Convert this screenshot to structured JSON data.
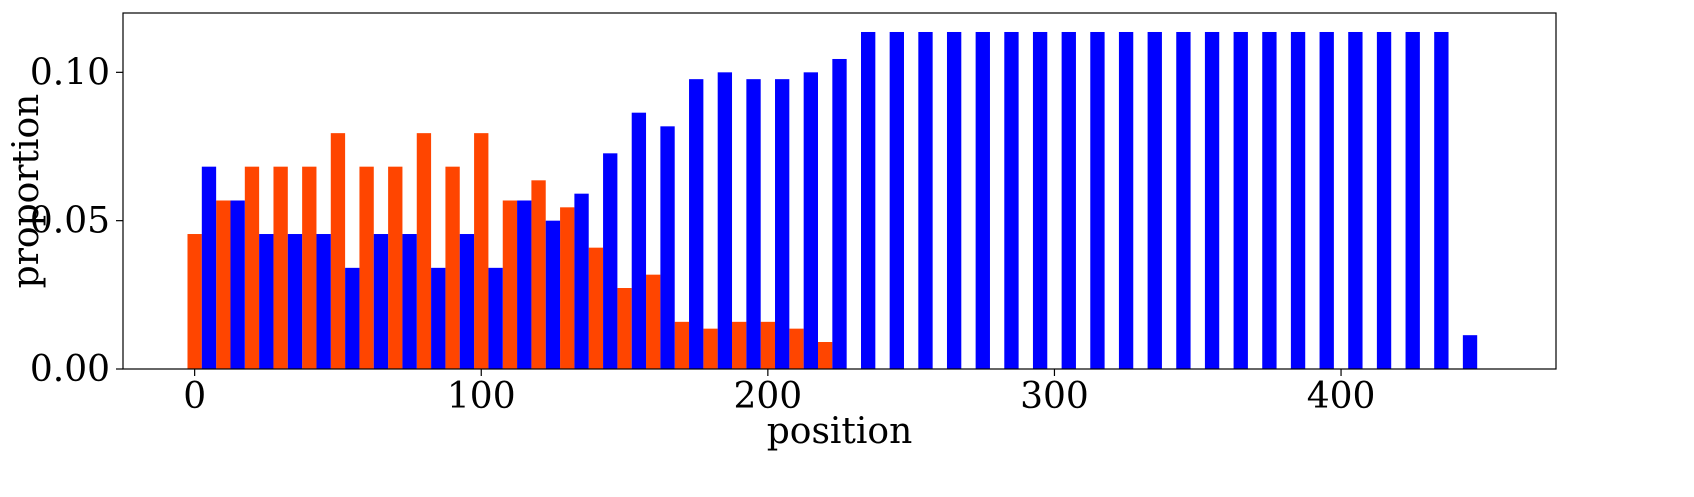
{
  "chart_data": {
    "type": "bar",
    "xlabel": "position",
    "ylabel": "proportion",
    "xlim": [
      -25,
      475
    ],
    "ylim": [
      0,
      0.12
    ],
    "x_ticks": [
      0,
      100,
      200,
      300,
      400
    ],
    "x_tick_labels": [
      "0",
      "100",
      "200",
      "300",
      "400"
    ],
    "y_ticks": [
      0,
      0.05,
      0.1
    ],
    "y_tick_labels": [
      "0.00",
      "0.05",
      "0.10"
    ],
    "grid": false,
    "bar_width": 5,
    "colors": {
      "orange": "#ff4500",
      "blue": "#0000ff"
    },
    "series": [
      {
        "color": "#ff4500",
        "x": [
          0,
          10,
          20,
          30,
          40,
          50,
          60,
          70,
          80,
          90,
          100,
          110,
          120,
          130,
          140,
          150,
          160,
          170,
          180,
          190,
          200,
          210,
          220
        ],
        "values": [
          0.0455,
          0.0568,
          0.0682,
          0.0682,
          0.0682,
          0.0795,
          0.0682,
          0.0682,
          0.0795,
          0.0682,
          0.0795,
          0.0568,
          0.0636,
          0.0545,
          0.0409,
          0.0273,
          0.0318,
          0.0159,
          0.0136,
          0.0159,
          0.0159,
          0.0136,
          0.0091
        ]
      },
      {
        "color": "#0000ff",
        "x": [
          5,
          15,
          25,
          35,
          45,
          55,
          65,
          75,
          85,
          95,
          105,
          115,
          125,
          135,
          145,
          155,
          165,
          175,
          185,
          195,
          205,
          215,
          225,
          235,
          245,
          255,
          265,
          275,
          285,
          295,
          305,
          315,
          325,
          335,
          345,
          355,
          365,
          375,
          385,
          395,
          405,
          415,
          425,
          435,
          445
        ],
        "values": [
          0.0682,
          0.0568,
          0.0455,
          0.0455,
          0.0455,
          0.0341,
          0.0455,
          0.0455,
          0.0341,
          0.0455,
          0.0341,
          0.0568,
          0.05,
          0.0591,
          0.0727,
          0.0864,
          0.0818,
          0.0977,
          0.1,
          0.0977,
          0.0977,
          0.1,
          0.1045,
          0.1136,
          0.1136,
          0.1136,
          0.1136,
          0.1136,
          0.1136,
          0.1136,
          0.1136,
          0.1136,
          0.1136,
          0.1136,
          0.1136,
          0.1136,
          0.1136,
          0.1136,
          0.1136,
          0.1136,
          0.1136,
          0.1136,
          0.1136,
          0.1136,
          0.0114
        ]
      }
    ]
  }
}
